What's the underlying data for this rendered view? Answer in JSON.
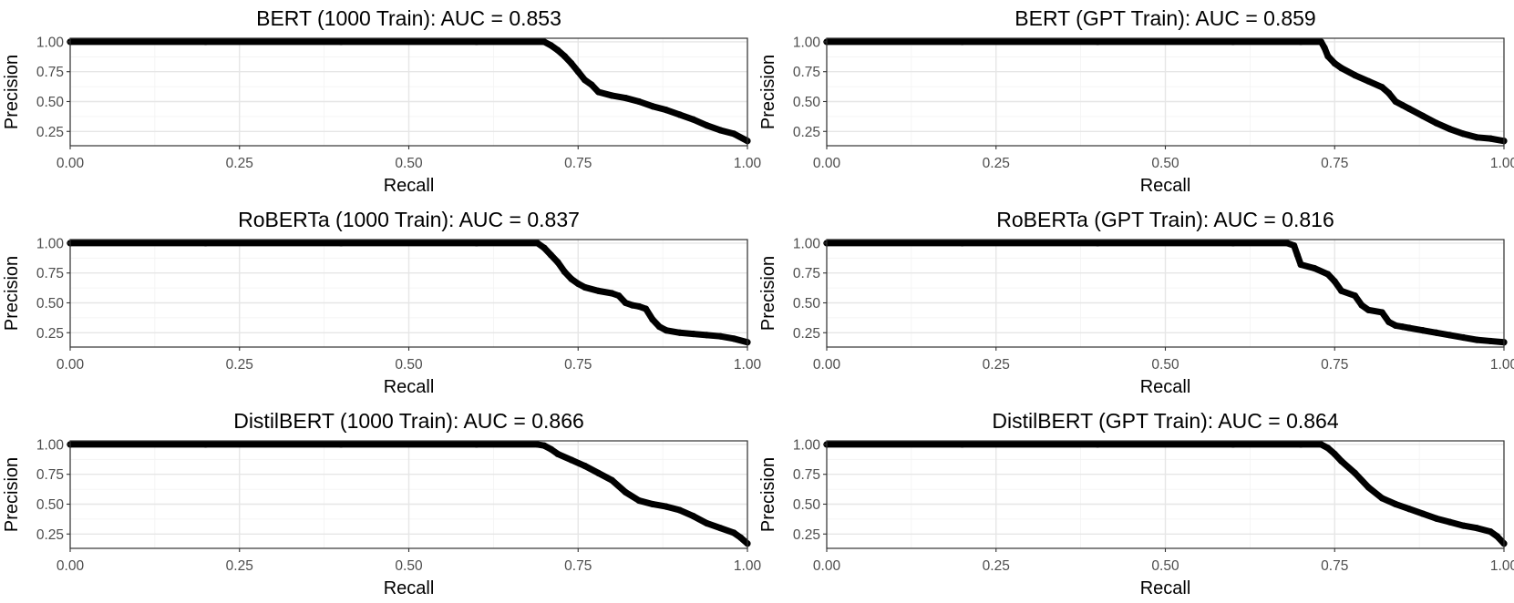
{
  "chart_data": [
    {
      "type": "line",
      "title": "BERT (1000 Train): AUC = 0.853",
      "xlabel": "Recall",
      "ylabel": "Precision",
      "xlim": [
        0,
        1
      ],
      "ylim": [
        0.13,
        1.03
      ],
      "xticks": [
        "0.00",
        "0.25",
        "0.50",
        "0.75",
        "1.00"
      ],
      "yticks": [
        "0.25",
        "0.50",
        "0.75",
        "1.00"
      ],
      "grid": true,
      "x": [
        0.0,
        0.2,
        0.4,
        0.6,
        0.7,
        0.71,
        0.72,
        0.73,
        0.74,
        0.75,
        0.76,
        0.77,
        0.78,
        0.8,
        0.82,
        0.84,
        0.86,
        0.88,
        0.9,
        0.92,
        0.94,
        0.96,
        0.98,
        1.0
      ],
      "y": [
        1.0,
        1.0,
        1.0,
        1.0,
        1.0,
        0.97,
        0.93,
        0.88,
        0.82,
        0.75,
        0.68,
        0.64,
        0.58,
        0.55,
        0.53,
        0.5,
        0.46,
        0.43,
        0.39,
        0.35,
        0.3,
        0.26,
        0.23,
        0.17
      ]
    },
    {
      "type": "line",
      "title": "BERT (GPT Train): AUC = 0.859",
      "xlabel": "Recall",
      "ylabel": "Precision",
      "xlim": [
        0,
        1
      ],
      "ylim": [
        0.13,
        1.03
      ],
      "xticks": [
        "0.00",
        "0.25",
        "0.50",
        "0.75",
        "1.00"
      ],
      "yticks": [
        "0.25",
        "0.50",
        "0.75",
        "1.00"
      ],
      "grid": true,
      "x": [
        0.0,
        0.2,
        0.4,
        0.6,
        0.7,
        0.73,
        0.735,
        0.74,
        0.75,
        0.76,
        0.78,
        0.8,
        0.82,
        0.83,
        0.84,
        0.85,
        0.86,
        0.88,
        0.9,
        0.92,
        0.94,
        0.96,
        0.98,
        1.0
      ],
      "y": [
        1.0,
        1.0,
        1.0,
        1.0,
        1.0,
        1.0,
        0.95,
        0.88,
        0.82,
        0.78,
        0.72,
        0.67,
        0.62,
        0.57,
        0.5,
        0.47,
        0.44,
        0.38,
        0.32,
        0.27,
        0.23,
        0.2,
        0.19,
        0.17
      ]
    },
    {
      "type": "line",
      "title": "RoBERTa (1000 Train): AUC = 0.837",
      "xlabel": "Recall",
      "ylabel": "Precision",
      "xlim": [
        0,
        1
      ],
      "ylim": [
        0.13,
        1.03
      ],
      "xticks": [
        "0.00",
        "0.25",
        "0.50",
        "0.75",
        "1.00"
      ],
      "yticks": [
        "0.25",
        "0.50",
        "0.75",
        "1.00"
      ],
      "grid": true,
      "x": [
        0.0,
        0.2,
        0.4,
        0.6,
        0.69,
        0.7,
        0.71,
        0.72,
        0.73,
        0.74,
        0.75,
        0.76,
        0.78,
        0.8,
        0.81,
        0.82,
        0.83,
        0.84,
        0.85,
        0.86,
        0.87,
        0.88,
        0.9,
        0.92,
        0.94,
        0.96,
        0.98,
        1.0
      ],
      "y": [
        1.0,
        1.0,
        1.0,
        1.0,
        1.0,
        0.96,
        0.9,
        0.84,
        0.76,
        0.7,
        0.66,
        0.63,
        0.6,
        0.58,
        0.56,
        0.5,
        0.48,
        0.47,
        0.45,
        0.36,
        0.3,
        0.27,
        0.25,
        0.24,
        0.23,
        0.22,
        0.2,
        0.17
      ]
    },
    {
      "type": "line",
      "title": "RoBERTa (GPT Train): AUC = 0.816",
      "xlabel": "Recall",
      "ylabel": "Precision",
      "xlim": [
        0,
        1
      ],
      "ylim": [
        0.13,
        1.03
      ],
      "xticks": [
        "0.00",
        "0.25",
        "0.50",
        "0.75",
        "1.00"
      ],
      "yticks": [
        "0.25",
        "0.50",
        "0.75",
        "1.00"
      ],
      "grid": true,
      "x": [
        0.0,
        0.2,
        0.4,
        0.6,
        0.68,
        0.69,
        0.695,
        0.7,
        0.72,
        0.74,
        0.75,
        0.76,
        0.78,
        0.79,
        0.8,
        0.82,
        0.83,
        0.84,
        0.85,
        0.86,
        0.88,
        0.9,
        0.92,
        0.94,
        0.96,
        0.98,
        1.0
      ],
      "y": [
        1.0,
        1.0,
        1.0,
        1.0,
        1.0,
        0.98,
        0.9,
        0.82,
        0.79,
        0.74,
        0.68,
        0.6,
        0.56,
        0.48,
        0.44,
        0.42,
        0.34,
        0.31,
        0.3,
        0.29,
        0.27,
        0.25,
        0.23,
        0.21,
        0.19,
        0.18,
        0.17
      ]
    },
    {
      "type": "line",
      "title": "DistilBERT (1000 Train): AUC = 0.866",
      "xlabel": "Recall",
      "ylabel": "Precision",
      "xlim": [
        0,
        1
      ],
      "ylim": [
        0.13,
        1.03
      ],
      "xticks": [
        "0.00",
        "0.25",
        "0.50",
        "0.75",
        "1.00"
      ],
      "yticks": [
        "0.25",
        "0.50",
        "0.75",
        "1.00"
      ],
      "grid": true,
      "x": [
        0.0,
        0.2,
        0.4,
        0.6,
        0.69,
        0.7,
        0.71,
        0.72,
        0.74,
        0.76,
        0.78,
        0.8,
        0.82,
        0.84,
        0.86,
        0.88,
        0.9,
        0.92,
        0.94,
        0.96,
        0.98,
        0.99,
        1.0
      ],
      "y": [
        1.0,
        1.0,
        1.0,
        1.0,
        1.0,
        0.99,
        0.96,
        0.92,
        0.87,
        0.82,
        0.76,
        0.7,
        0.6,
        0.53,
        0.5,
        0.48,
        0.45,
        0.4,
        0.34,
        0.3,
        0.26,
        0.22,
        0.17
      ]
    },
    {
      "type": "line",
      "title": "DistilBERT (GPT Train): AUC = 0.864",
      "xlabel": "Recall",
      "ylabel": "Precision",
      "xlim": [
        0,
        1
      ],
      "ylim": [
        0.13,
        1.03
      ],
      "xticks": [
        "0.00",
        "0.25",
        "0.50",
        "0.75",
        "1.00"
      ],
      "yticks": [
        "0.25",
        "0.50",
        "0.75",
        "1.00"
      ],
      "grid": true,
      "x": [
        0.0,
        0.2,
        0.4,
        0.6,
        0.7,
        0.73,
        0.74,
        0.75,
        0.76,
        0.78,
        0.8,
        0.82,
        0.84,
        0.86,
        0.88,
        0.9,
        0.92,
        0.94,
        0.96,
        0.98,
        0.99,
        1.0
      ],
      "y": [
        1.0,
        1.0,
        1.0,
        1.0,
        1.0,
        1.0,
        0.97,
        0.92,
        0.86,
        0.76,
        0.64,
        0.55,
        0.5,
        0.46,
        0.42,
        0.38,
        0.35,
        0.32,
        0.3,
        0.27,
        0.23,
        0.17
      ]
    }
  ]
}
